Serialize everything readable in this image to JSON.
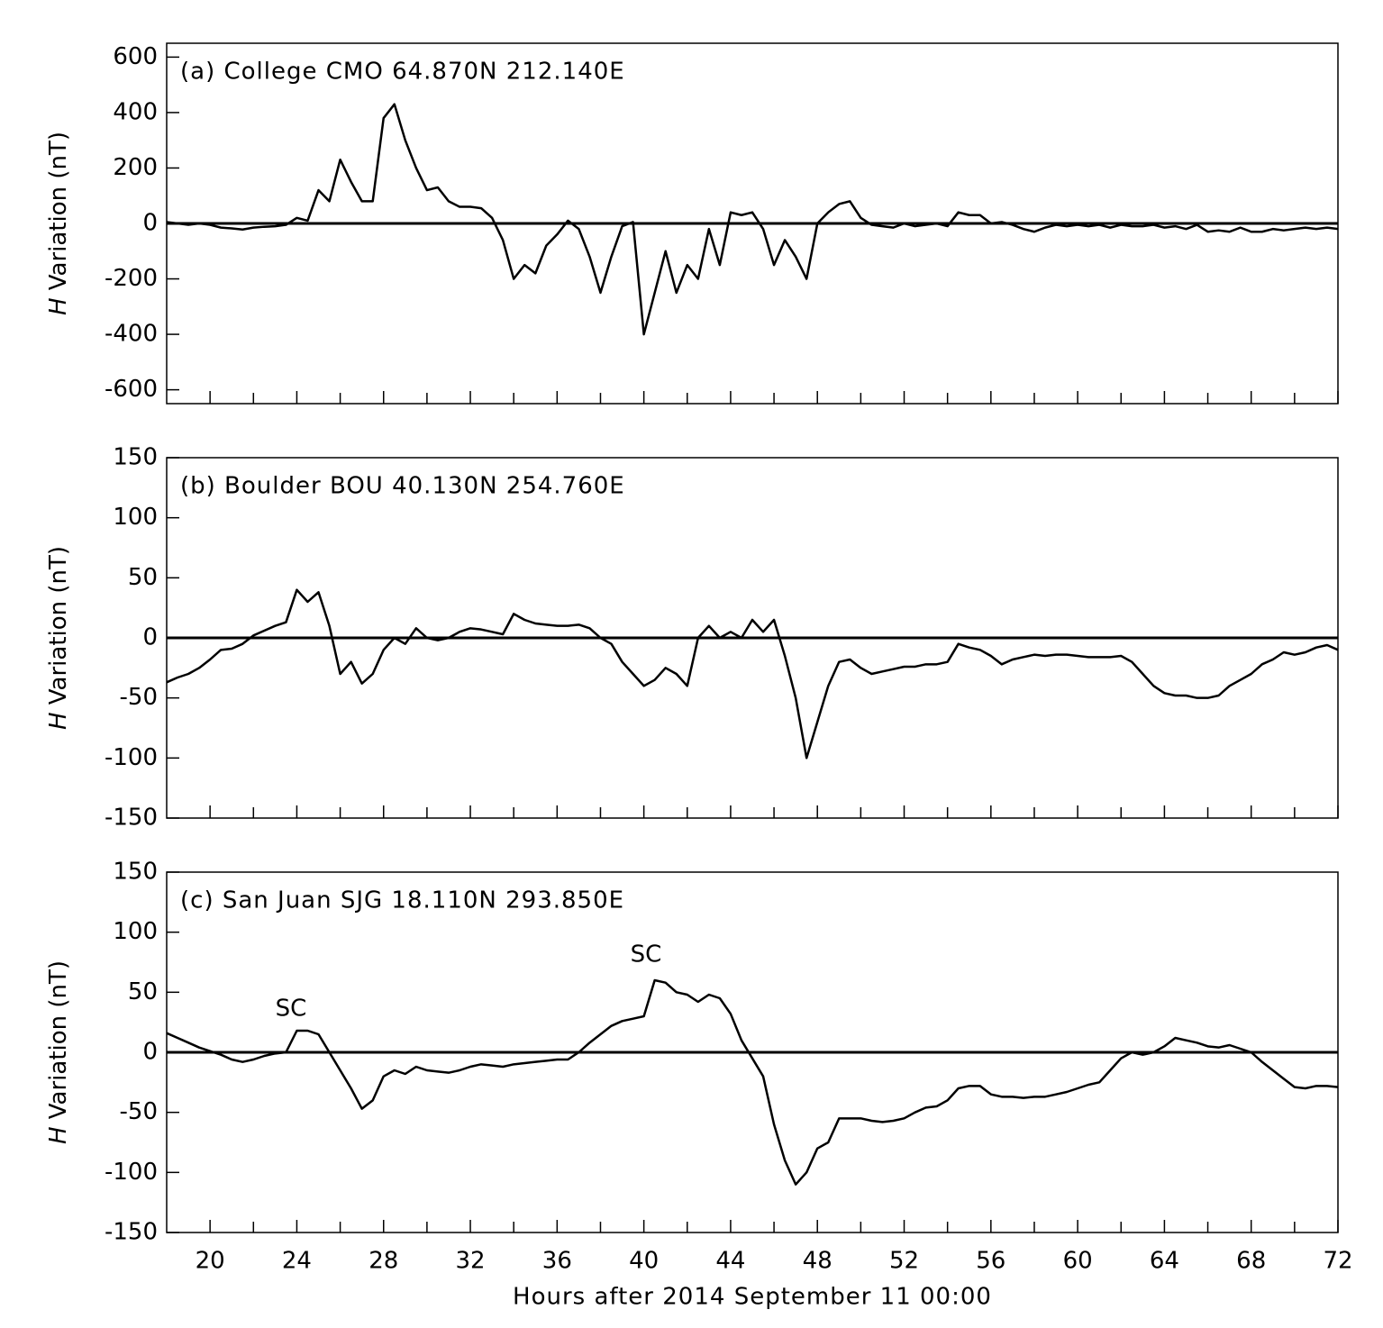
{
  "chart_data": [
    {
      "type": "line",
      "title": "(a) College CMO 64.870N 212.140E",
      "ylabel_symbol": "H",
      "ylabel": "Variation (nT)",
      "x": [
        18,
        18.5,
        19,
        19.5,
        20,
        20.5,
        21,
        21.5,
        22,
        22.5,
        23,
        23.5,
        24,
        24.5,
        25,
        25.5,
        26,
        26.5,
        27,
        27.5,
        28,
        28.5,
        29,
        29.5,
        30,
        30.5,
        31,
        31.5,
        32,
        32.5,
        33,
        33.5,
        34,
        34.5,
        35,
        35.5,
        36,
        36.5,
        37,
        37.5,
        38,
        38.5,
        39,
        39.5,
        40,
        40.5,
        41,
        41.5,
        42,
        42.5,
        43,
        43.5,
        44,
        44.5,
        45,
        45.5,
        46,
        46.5,
        47,
        47.5,
        48,
        48.5,
        49,
        49.5,
        50,
        50.5,
        51,
        51.5,
        52,
        52.5,
        53,
        53.5,
        54,
        54.5,
        55,
        55.5,
        56,
        56.5,
        57,
        57.5,
        58,
        58.5,
        59,
        59.5,
        60,
        60.5,
        61,
        61.5,
        62,
        62.5,
        63,
        63.5,
        64,
        64.5,
        65,
        65.5,
        66,
        66.5,
        67,
        67.5,
        68,
        68.5,
        69,
        69.5,
        70,
        70.5,
        71,
        71.5,
        72
      ],
      "series": [
        {
          "color": "#000000",
          "values": [
            5,
            0,
            -5,
            0,
            -5,
            -15,
            -18,
            -22,
            -15,
            -12,
            -10,
            -5,
            20,
            10,
            120,
            80,
            230,
            150,
            80,
            80,
            380,
            430,
            300,
            200,
            120,
            130,
            80,
            60,
            60,
            55,
            20,
            -60,
            -200,
            -150,
            -180,
            -80,
            -40,
            10,
            -20,
            -120,
            -250,
            -120,
            -10,
            5,
            -400,
            -250,
            -100,
            -250,
            -150,
            -200,
            -20,
            -150,
            40,
            30,
            40,
            -20,
            -150,
            -60,
            -120,
            -200,
            0,
            40,
            70,
            80,
            20,
            -5,
            -10,
            -15,
            0,
            -10,
            -5,
            0,
            -10,
            40,
            30,
            30,
            0,
            5,
            -5,
            -20,
            -30,
            -15,
            -5,
            -10,
            -5,
            -10,
            -5,
            -15,
            -5,
            -10,
            -10,
            -5,
            -15,
            -10,
            -20,
            -5,
            -30,
            -25,
            -30,
            -15,
            -30,
            -30,
            -20,
            -25,
            -20,
            -15,
            -20,
            -15,
            -20
          ]
        }
      ],
      "xlim": [
        18,
        72
      ],
      "xticks": [
        20,
        24,
        28,
        32,
        36,
        40,
        44,
        48,
        52,
        56,
        60,
        64,
        68,
        72
      ],
      "xminorticks": [
        22,
        26,
        30,
        34,
        38,
        42,
        46,
        50,
        54,
        58,
        62,
        66,
        70
      ],
      "show_xtick_labels": false,
      "ylim": [
        -650,
        650
      ],
      "yticks": [
        -600,
        -400,
        -200,
        0,
        200,
        400,
        600
      ],
      "zero_line": true
    },
    {
      "type": "line",
      "title": "(b) Boulder BOU 40.130N 254.760E",
      "ylabel_symbol": "H",
      "ylabel": "Variation (nT)",
      "x": [
        18,
        18.5,
        19,
        19.5,
        20,
        20.5,
        21,
        21.5,
        22,
        22.5,
        23,
        23.5,
        24,
        24.5,
        25,
        25.5,
        26,
        26.5,
        27,
        27.5,
        28,
        28.5,
        29,
        29.5,
        30,
        30.5,
        31,
        31.5,
        32,
        32.5,
        33,
        33.5,
        34,
        34.5,
        35,
        35.5,
        36,
        36.5,
        37,
        37.5,
        38,
        38.5,
        39,
        39.5,
        40,
        40.5,
        41,
        41.5,
        42,
        42.5,
        43,
        43.5,
        44,
        44.5,
        45,
        45.5,
        46,
        46.5,
        47,
        47.5,
        48,
        48.5,
        49,
        49.5,
        50,
        50.5,
        51,
        51.5,
        52,
        52.5,
        53,
        53.5,
        54,
        54.5,
        55,
        55.5,
        56,
        56.5,
        57,
        57.5,
        58,
        58.5,
        59,
        59.5,
        60,
        60.5,
        61,
        61.5,
        62,
        62.5,
        63,
        63.5,
        64,
        64.5,
        65,
        65.5,
        66,
        66.5,
        67,
        67.5,
        68,
        68.5,
        69,
        69.5,
        70,
        70.5,
        71,
        71.5,
        72
      ],
      "series": [
        {
          "color": "#000000",
          "values": [
            -37,
            -33,
            -30,
            -25,
            -18,
            -10,
            -9,
            -5,
            2,
            6,
            10,
            13,
            40,
            30,
            38,
            10,
            -30,
            -20,
            -38,
            -30,
            -10,
            0,
            -5,
            8,
            0,
            -2,
            0,
            5,
            8,
            7,
            5,
            3,
            20,
            15,
            12,
            11,
            10,
            10,
            11,
            8,
            0,
            -5,
            -20,
            -30,
            -40,
            -35,
            -25,
            -30,
            -40,
            0,
            10,
            0,
            5,
            0,
            15,
            5,
            15,
            -15,
            -50,
            -100,
            -70,
            -40,
            -20,
            -18,
            -25,
            -30,
            -28,
            -26,
            -24,
            -24,
            -22,
            -22,
            -20,
            -5,
            -8,
            -10,
            -15,
            -22,
            -18,
            -16,
            -14,
            -15,
            -14,
            -14,
            -15,
            -16,
            -16,
            -16,
            -15,
            -20,
            -30,
            -40,
            -46,
            -48,
            -48,
            -50,
            -50,
            -48,
            -40,
            -35,
            -30,
            -22,
            -18,
            -12,
            -14,
            -12,
            -8,
            -6,
            -10
          ]
        }
      ],
      "xlim": [
        18,
        72
      ],
      "xticks": [
        20,
        24,
        28,
        32,
        36,
        40,
        44,
        48,
        52,
        56,
        60,
        64,
        68,
        72
      ],
      "xminorticks": [
        22,
        26,
        30,
        34,
        38,
        42,
        46,
        50,
        54,
        58,
        62,
        66,
        70
      ],
      "show_xtick_labels": false,
      "ylim": [
        -150,
        150
      ],
      "yticks": [
        -150,
        -100,
        -50,
        0,
        50,
        100,
        150
      ],
      "zero_line": true
    },
    {
      "type": "line",
      "title": "(c) San Juan SJG 18.110N 293.850E",
      "ylabel_symbol": "H",
      "ylabel": "Variation (nT)",
      "xlabel": "Hours after 2014 September 11 00:00",
      "annotations": [
        "SC",
        "SC"
      ],
      "x": [
        18,
        18.5,
        19,
        19.5,
        20,
        20.5,
        21,
        21.5,
        22,
        22.5,
        23,
        23.5,
        24,
        24.5,
        25,
        25.5,
        26,
        26.5,
        27,
        27.5,
        28,
        28.5,
        29,
        29.5,
        30,
        30.5,
        31,
        31.5,
        32,
        32.5,
        33,
        33.5,
        34,
        34.5,
        35,
        35.5,
        36,
        36.5,
        37,
        37.5,
        38,
        38.5,
        39,
        39.5,
        40,
        40.5,
        41,
        41.5,
        42,
        42.5,
        43,
        43.5,
        44,
        44.5,
        45,
        45.5,
        46,
        46.5,
        47,
        47.5,
        48,
        48.5,
        49,
        49.5,
        50,
        50.5,
        51,
        51.5,
        52,
        52.5,
        53,
        53.5,
        54,
        54.5,
        55,
        55.5,
        56,
        56.5,
        57,
        57.5,
        58,
        58.5,
        59,
        59.5,
        60,
        60.5,
        61,
        61.5,
        62,
        62.5,
        63,
        63.5,
        64,
        64.5,
        65,
        65.5,
        66,
        66.5,
        67,
        67.5,
        68,
        68.5,
        69,
        69.5,
        70,
        70.5,
        71,
        71.5,
        72
      ],
      "series": [
        {
          "color": "#000000",
          "values": [
            16,
            12,
            8,
            4,
            1,
            -2,
            -6,
            -8,
            -6,
            -3,
            -1,
            0,
            18,
            18,
            15,
            0,
            -15,
            -30,
            -47,
            -40,
            -20,
            -15,
            -18,
            -12,
            -15,
            -16,
            -17,
            -15,
            -12,
            -10,
            -11,
            -12,
            -10,
            -9,
            -8,
            -7,
            -6,
            -6,
            0,
            8,
            15,
            22,
            26,
            28,
            30,
            60,
            58,
            50,
            48,
            42,
            48,
            45,
            32,
            10,
            -5,
            -20,
            -60,
            -90,
            -110,
            -100,
            -80,
            -75,
            -55,
            -55,
            -55,
            -57,
            -58,
            -57,
            -55,
            -50,
            -46,
            -45,
            -40,
            -30,
            -28,
            -28,
            -35,
            -37,
            -37,
            -38,
            -37,
            -37,
            -35,
            -33,
            -30,
            -27,
            -25,
            -15,
            -5,
            0,
            -2,
            0,
            5,
            12,
            10,
            8,
            5,
            4,
            6,
            3,
            0,
            -8,
            -15,
            -22,
            -29,
            -30,
            -28,
            -28,
            -29
          ]
        }
      ],
      "xlim": [
        18,
        72
      ],
      "xticks": [
        20,
        24,
        28,
        32,
        36,
        40,
        44,
        48,
        52,
        56,
        60,
        64,
        68,
        72
      ],
      "xminorticks": [
        22,
        26,
        30,
        34,
        38,
        42,
        46,
        50,
        54,
        58,
        62,
        66,
        70
      ],
      "show_xtick_labels": true,
      "ylim": [
        -150,
        150
      ],
      "yticks": [
        -150,
        -100,
        -50,
        0,
        50,
        100,
        150
      ],
      "zero_line": true
    }
  ]
}
